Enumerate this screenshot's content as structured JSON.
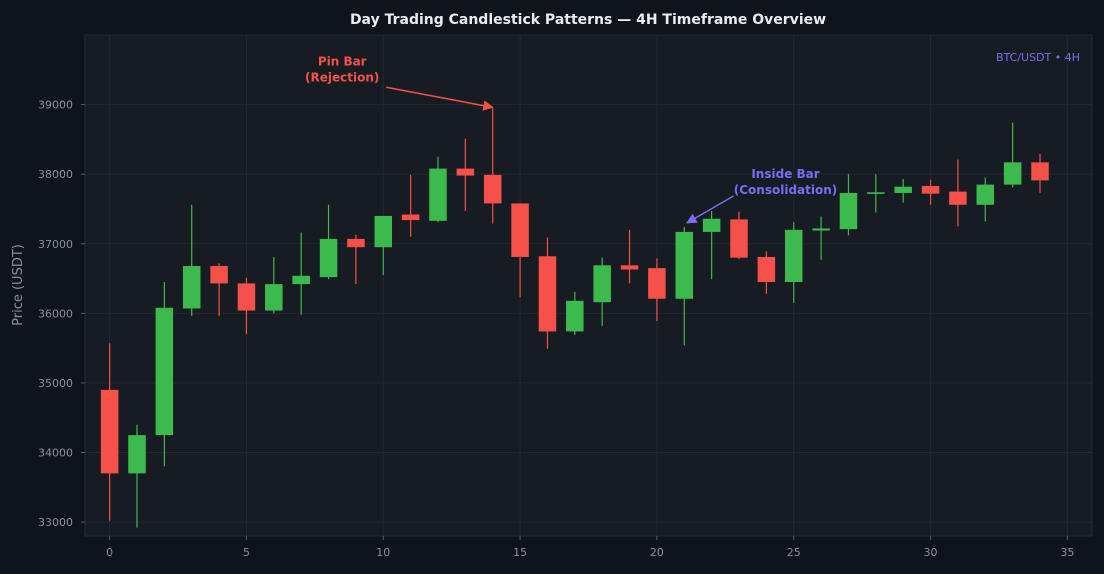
{
  "chart_data": {
    "type": "candlestick",
    "title": "Day Trading Candlestick Patterns — 4H Timeframe Overview",
    "xlabel": "",
    "ylabel": "Price (USDT)",
    "symbol_label": "BTC/USDT • 4H",
    "xlim": [
      -0.9,
      35.9
    ],
    "ylim": [
      32800,
      40000
    ],
    "x_ticks": [
      0,
      5,
      10,
      15,
      20,
      25,
      30,
      35
    ],
    "y_ticks": [
      33000,
      34000,
      35000,
      36000,
      37000,
      38000,
      39000
    ],
    "grid": true,
    "colors": {
      "up": "#3dba4e",
      "down": "#f5504a",
      "pin_annotation": "#f5504a",
      "inside_annotation": "#7b6cf6",
      "symbol_label": "#7b6cf6",
      "background": "#0f131a",
      "plot_background": "#171b22"
    },
    "candles": [
      {
        "x": 0,
        "open": 34900,
        "high": 35570,
        "low": 33020,
        "close": 33700
      },
      {
        "x": 1,
        "open": 33700,
        "high": 34400,
        "low": 32920,
        "close": 34250
      },
      {
        "x": 2,
        "open": 34250,
        "high": 36450,
        "low": 33800,
        "close": 36080
      },
      {
        "x": 3,
        "open": 36070,
        "high": 37560,
        "low": 35960,
        "close": 36680
      },
      {
        "x": 4,
        "open": 36680,
        "high": 36720,
        "low": 35960,
        "close": 36430
      },
      {
        "x": 5,
        "open": 36430,
        "high": 36510,
        "low": 35700,
        "close": 36040
      },
      {
        "x": 6,
        "open": 36040,
        "high": 36810,
        "low": 36000,
        "close": 36420
      },
      {
        "x": 7,
        "open": 36420,
        "high": 37160,
        "low": 35980,
        "close": 36540
      },
      {
        "x": 8,
        "open": 36520,
        "high": 37560,
        "low": 36490,
        "close": 37070
      },
      {
        "x": 9,
        "open": 37070,
        "high": 37130,
        "low": 36420,
        "close": 36950
      },
      {
        "x": 10,
        "open": 36950,
        "high": 37400,
        "low": 36550,
        "close": 37400
      },
      {
        "x": 11,
        "open": 37420,
        "high": 37990,
        "low": 37100,
        "close": 37340
      },
      {
        "x": 12,
        "open": 37330,
        "high": 38250,
        "low": 37310,
        "close": 38080
      },
      {
        "x": 13,
        "open": 38080,
        "high": 38510,
        "low": 37470,
        "close": 37980
      },
      {
        "x": 14,
        "open": 37990,
        "high": 38950,
        "low": 37290,
        "close": 37580
      },
      {
        "x": 15,
        "open": 37580,
        "high": 37580,
        "low": 36230,
        "close": 36810
      },
      {
        "x": 16,
        "open": 36820,
        "high": 37090,
        "low": 35490,
        "close": 35740
      },
      {
        "x": 17,
        "open": 35740,
        "high": 36310,
        "low": 35690,
        "close": 36180
      },
      {
        "x": 18,
        "open": 36160,
        "high": 36800,
        "low": 35820,
        "close": 36690
      },
      {
        "x": 19,
        "open": 36690,
        "high": 37200,
        "low": 36430,
        "close": 36630
      },
      {
        "x": 20,
        "open": 36650,
        "high": 36790,
        "low": 35890,
        "close": 36210
      },
      {
        "x": 21,
        "open": 36210,
        "high": 37240,
        "low": 35540,
        "close": 37170
      },
      {
        "x": 22,
        "open": 37170,
        "high": 37470,
        "low": 36490,
        "close": 37360
      },
      {
        "x": 23,
        "open": 37350,
        "high": 37460,
        "low": 36780,
        "close": 36800
      },
      {
        "x": 24,
        "open": 36810,
        "high": 36890,
        "low": 36280,
        "close": 36450
      },
      {
        "x": 25,
        "open": 36450,
        "high": 37310,
        "low": 36150,
        "close": 37200
      },
      {
        "x": 26,
        "open": 37190,
        "high": 37390,
        "low": 36770,
        "close": 37220
      },
      {
        "x": 27,
        "open": 37210,
        "high": 38000,
        "low": 37120,
        "close": 37730
      },
      {
        "x": 28,
        "open": 37730,
        "high": 38000,
        "low": 37450,
        "close": 37740
      },
      {
        "x": 29,
        "open": 37730,
        "high": 37930,
        "low": 37590,
        "close": 37820
      },
      {
        "x": 30,
        "open": 37830,
        "high": 37920,
        "low": 37560,
        "close": 37720
      },
      {
        "x": 31,
        "open": 37750,
        "high": 38210,
        "low": 37250,
        "close": 37560
      },
      {
        "x": 32,
        "open": 37560,
        "high": 37950,
        "low": 37320,
        "close": 37850
      },
      {
        "x": 33,
        "open": 37850,
        "high": 38740,
        "low": 37810,
        "close": 38170
      },
      {
        "x": 34,
        "open": 38170,
        "high": 38290,
        "low": 37730,
        "close": 37910
      }
    ],
    "annotations": [
      {
        "text_lines": [
          "Pin Bar",
          "(Rejection)"
        ],
        "text_x": 8.5,
        "text_y": 39450,
        "target_x": 14,
        "target_y": 38960,
        "color_key": "pin_annotation"
      },
      {
        "text_lines": [
          "Inside Bar",
          "(Consolidation)"
        ],
        "text_x": 24.7,
        "text_y": 37830,
        "target_x": 21.1,
        "target_y": 37300,
        "color_key": "inside_annotation"
      }
    ]
  }
}
